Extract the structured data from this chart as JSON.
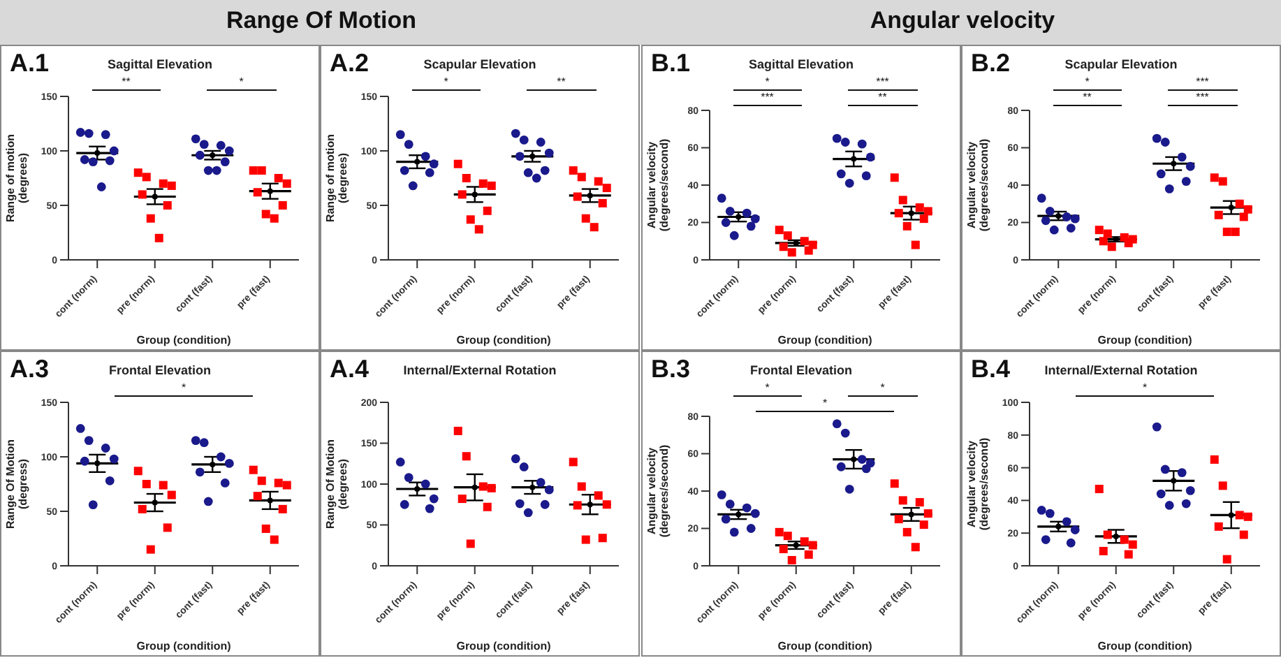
{
  "chart_data": [
    {
      "type": "scatter",
      "title": "Sagittal Elevation",
      "xlabel": "Group (condition)",
      "ylabel": "Range of motion (degrees)",
      "categories": [
        "cont (norm)",
        "pre (norm)",
        "cont (fast)",
        "pre (fast)"
      ],
      "ylim": [
        0,
        150
      ],
      "yticks": [
        0,
        50,
        100,
        150
      ],
      "series": [
        {
          "color": "#1a1a8c",
          "marker": "circle",
          "x": [
            "cont (norm)",
            "cont (norm)",
            "cont (norm)",
            "cont (norm)",
            "cont (norm)",
            "cont (norm)",
            "cont (norm)",
            "cont (norm)"
          ],
          "values": [
            117,
            116,
            115,
            100,
            92,
            91,
            90,
            67
          ]
        },
        {
          "color": "#ff0000",
          "marker": "square",
          "x": [
            "pre (norm)",
            "pre (norm)",
            "pre (norm)",
            "pre (norm)",
            "pre (norm)",
            "pre (norm)",
            "pre (norm)",
            "pre (norm)"
          ],
          "values": [
            80,
            76,
            70,
            68,
            60,
            50,
            38,
            20
          ]
        },
        {
          "color": "#1a1a8c",
          "marker": "circle",
          "x": [
            "cont (fast)",
            "cont (fast)",
            "cont (fast)",
            "cont (fast)",
            "cont (fast)",
            "cont (fast)",
            "cont (fast)",
            "cont (fast)"
          ],
          "values": [
            111,
            106,
            105,
            100,
            96,
            90,
            82,
            82
          ]
        },
        {
          "color": "#ff0000",
          "marker": "square",
          "x": [
            "pre (fast)",
            "pre (fast)",
            "pre (fast)",
            "pre (fast)",
            "pre (fast)",
            "pre (fast)",
            "pre (fast)",
            "pre (fast)"
          ],
          "values": [
            82,
            82,
            75,
            70,
            62,
            50,
            42,
            38
          ]
        },
        {
          "color": "#000000",
          "marker": "circle",
          "x": [
            "cont (norm)",
            "pre (norm)",
            "cont (fast)",
            "pre (fast)"
          ],
          "values": [
            98,
            58,
            96,
            63
          ],
          "errors": [
            6,
            7,
            4,
            7
          ]
        }
      ],
      "subtitle": "Range Of Motion",
      "annotations": [
        "A.1",
        "**",
        "*"
      ]
    },
    {
      "type": "scatter",
      "title": "Scapular Elevation",
      "xlabel": "Group (condition)",
      "ylabel": "Range of motion (degrees)",
      "categories": [
        "cont (norm)",
        "pre (norm)",
        "cont (fast)",
        "pre (fast)"
      ],
      "ylim": [
        0,
        150
      ],
      "yticks": [
        0,
        50,
        100,
        150
      ],
      "series": [
        {
          "color": "#1a1a8c",
          "marker": "circle",
          "x": [
            "cont (norm)",
            "cont (norm)",
            "cont (norm)",
            "cont (norm)",
            "cont (norm)",
            "cont (norm)",
            "cont (norm)"
          ],
          "values": [
            115,
            106,
            95,
            88,
            82,
            80,
            68
          ]
        },
        {
          "color": "#ff0000",
          "marker": "square",
          "x": [
            "pre (norm)",
            "pre (norm)",
            "pre (norm)",
            "pre (norm)",
            "pre (norm)",
            "pre (norm)",
            "pre (norm)",
            "pre (norm)"
          ],
          "values": [
            88,
            75,
            70,
            68,
            60,
            45,
            37,
            28
          ]
        },
        {
          "color": "#1a1a8c",
          "marker": "circle",
          "x": [
            "cont (fast)",
            "cont (fast)",
            "cont (fast)",
            "cont (fast)",
            "cont (fast)",
            "cont (fast)",
            "cont (fast)",
            "cont (fast)"
          ],
          "values": [
            116,
            110,
            108,
            98,
            95,
            82,
            80,
            75
          ]
        },
        {
          "color": "#ff0000",
          "marker": "square",
          "x": [
            "pre (fast)",
            "pre (fast)",
            "pre (fast)",
            "pre (fast)",
            "pre (fast)",
            "pre (fast)",
            "pre (fast)",
            "pre (fast)"
          ],
          "values": [
            82,
            76,
            72,
            66,
            58,
            52,
            38,
            30
          ]
        },
        {
          "color": "#000000",
          "marker": "circle",
          "x": [
            "cont (norm)",
            "pre (norm)",
            "cont (fast)",
            "pre (fast)"
          ],
          "values": [
            90,
            60,
            95,
            59
          ],
          "errors": [
            6,
            7,
            5,
            6
          ]
        }
      ],
      "annotations": [
        "A.2",
        "*",
        "**"
      ]
    },
    {
      "type": "scatter",
      "title": "Sagittal Elevation",
      "xlabel": "Group (condition)",
      "ylabel": "Angular velocity (degrees/second)",
      "categories": [
        "cont (norm)",
        "pre (norm)",
        "cont (fast)",
        "pre (fast)"
      ],
      "ylim": [
        0,
        80
      ],
      "yticks": [
        0,
        20,
        40,
        60,
        80
      ],
      "series": [
        {
          "color": "#1a1a8c",
          "marker": "circle",
          "x": [
            "cont (norm)",
            "cont (norm)",
            "cont (norm)",
            "cont (norm)",
            "cont (norm)",
            "cont (norm)",
            "cont (norm)"
          ],
          "values": [
            33,
            26,
            25,
            22,
            20,
            18,
            13
          ]
        },
        {
          "color": "#ff0000",
          "marker": "square",
          "x": [
            "pre (norm)",
            "pre (norm)",
            "pre (norm)",
            "pre (norm)",
            "pre (norm)",
            "pre (norm)",
            "pre (norm)"
          ],
          "values": [
            16,
            13,
            10,
            8,
            7,
            5,
            4
          ]
        },
        {
          "color": "#1a1a8c",
          "marker": "circle",
          "x": [
            "cont (fast)",
            "cont (fast)",
            "cont (fast)",
            "cont (fast)",
            "cont (fast)",
            "cont (fast)",
            "cont (fast)"
          ],
          "values": [
            65,
            63,
            62,
            55,
            46,
            45,
            41
          ]
        },
        {
          "color": "#ff0000",
          "marker": "square",
          "x": [
            "pre (fast)",
            "pre (fast)",
            "pre (fast)",
            "pre (fast)",
            "pre (fast)",
            "pre (fast)",
            "pre (fast)",
            "pre (fast)"
          ],
          "values": [
            44,
            32,
            28,
            26,
            25,
            22,
            18,
            8
          ]
        },
        {
          "color": "#000000",
          "marker": "circle",
          "x": [
            "cont (norm)",
            "pre (norm)",
            "cont (fast)",
            "pre (fast)"
          ],
          "values": [
            23,
            9,
            54,
            25
          ],
          "errors": [
            2.5,
            1.5,
            4,
            3.5
          ]
        }
      ],
      "subtitle": "Angular velocity",
      "annotations": [
        "B.1",
        "*",
        "***",
        "***",
        "**"
      ]
    },
    {
      "type": "scatter",
      "title": "Scapular Elevation",
      "xlabel": "Group (condition)",
      "ylabel": "Angular velocity (degrees/second)",
      "categories": [
        "cont (norm)",
        "pre (norm)",
        "cont (fast)",
        "pre (fast)"
      ],
      "ylim": [
        0,
        80
      ],
      "yticks": [
        0,
        20,
        40,
        60,
        80
      ],
      "series": [
        {
          "color": "#1a1a8c",
          "marker": "circle",
          "x": [
            "cont (norm)",
            "cont (norm)",
            "cont (norm)",
            "cont (norm)",
            "cont (norm)",
            "cont (norm)",
            "cont (norm)"
          ],
          "values": [
            33,
            26,
            23,
            22,
            21,
            17,
            16
          ]
        },
        {
          "color": "#ff0000",
          "marker": "square",
          "x": [
            "pre (norm)",
            "pre (norm)",
            "pre (norm)",
            "pre (norm)",
            "pre (norm)",
            "pre (norm)",
            "pre (norm)"
          ],
          "values": [
            16,
            14,
            12,
            11,
            10,
            9,
            7
          ]
        },
        {
          "color": "#1a1a8c",
          "marker": "circle",
          "x": [
            "cont (fast)",
            "cont (fast)",
            "cont (fast)",
            "cont (fast)",
            "cont (fast)",
            "cont (fast)",
            "cont (fast)"
          ],
          "values": [
            65,
            63,
            55,
            50,
            46,
            42,
            38
          ]
        },
        {
          "color": "#ff0000",
          "marker": "square",
          "x": [
            "pre (fast)",
            "pre (fast)",
            "pre (fast)",
            "pre (fast)",
            "pre (fast)",
            "pre (fast)",
            "pre (fast)",
            "pre (fast)"
          ],
          "values": [
            44,
            42,
            30,
            27,
            24,
            23,
            15,
            15
          ]
        },
        {
          "color": "#000000",
          "marker": "circle",
          "x": [
            "cont (norm)",
            "pre (norm)",
            "cont (fast)",
            "pre (fast)"
          ],
          "values": [
            23.5,
            11,
            51.5,
            28
          ],
          "errors": [
            2.3,
            1.2,
            3.5,
            3.5
          ]
        }
      ],
      "annotations": [
        "B.2",
        "*",
        "***",
        "**",
        "***"
      ]
    },
    {
      "type": "scatter",
      "title": "Frontal Elevation",
      "xlabel": "Group (condition)",
      "ylabel": "Range Of Motion (degress)",
      "categories": [
        "cont (norm)",
        "pre (norm)",
        "cont (fast)",
        "pre (fast)"
      ],
      "ylim": [
        0,
        150
      ],
      "yticks": [
        0,
        50,
        100,
        150
      ],
      "series": [
        {
          "color": "#1a1a8c",
          "marker": "circle",
          "x": [
            "cont (norm)",
            "cont (norm)",
            "cont (norm)",
            "cont (norm)",
            "cont (norm)",
            "cont (norm)",
            "cont (norm)"
          ],
          "values": [
            126,
            115,
            108,
            98,
            96,
            78,
            56
          ]
        },
        {
          "color": "#ff0000",
          "marker": "square",
          "x": [
            "pre (norm)",
            "pre (norm)",
            "pre (norm)",
            "pre (norm)",
            "pre (norm)",
            "pre (norm)",
            "pre (norm)"
          ],
          "values": [
            87,
            75,
            74,
            65,
            52,
            35,
            15
          ]
        },
        {
          "color": "#1a1a8c",
          "marker": "circle",
          "x": [
            "cont (fast)",
            "cont (fast)",
            "cont (fast)",
            "cont (fast)",
            "cont (fast)",
            "cont (fast)",
            "cont (fast)"
          ],
          "values": [
            115,
            113,
            100,
            94,
            86,
            76,
            59
          ]
        },
        {
          "color": "#ff0000",
          "marker": "square",
          "x": [
            "pre (fast)",
            "pre (fast)",
            "pre (fast)",
            "pre (fast)",
            "pre (fast)",
            "pre (fast)",
            "pre (fast)",
            "pre (fast)"
          ],
          "values": [
            88,
            78,
            76,
            74,
            64,
            52,
            34,
            24
          ]
        },
        {
          "color": "#000000",
          "marker": "circle",
          "x": [
            "cont (norm)",
            "pre (norm)",
            "cont (fast)",
            "pre (fast)"
          ],
          "values": [
            94,
            58,
            93,
            60
          ],
          "errors": [
            8,
            8,
            7,
            8
          ]
        }
      ],
      "annotations": [
        "A.3",
        "*"
      ]
    },
    {
      "type": "scatter",
      "title": "Internal/External Rotation",
      "xlabel": "Group (condition)",
      "ylabel": "Range Of Motion (degrees)",
      "categories": [
        "cont (norm)",
        "pre (norm)",
        "cont (fast)",
        "pre (fast)"
      ],
      "ylim": [
        0,
        200
      ],
      "yticks": [
        0,
        50,
        100,
        150,
        200
      ],
      "series": [
        {
          "color": "#1a1a8c",
          "marker": "circle",
          "x": [
            "cont (norm)",
            "cont (norm)",
            "cont (norm)",
            "cont (norm)",
            "cont (norm)",
            "cont (norm)"
          ],
          "values": [
            127,
            108,
            100,
            82,
            75,
            70
          ]
        },
        {
          "color": "#ff0000",
          "marker": "square",
          "x": [
            "pre (norm)",
            "pre (norm)",
            "pre (norm)",
            "pre (norm)",
            "pre (norm)",
            "pre (norm)",
            "pre (norm)"
          ],
          "values": [
            165,
            134,
            97,
            95,
            82,
            72,
            27
          ]
        },
        {
          "color": "#1a1a8c",
          "marker": "circle",
          "x": [
            "cont (fast)",
            "cont (fast)",
            "cont (fast)",
            "cont (fast)",
            "cont (fast)",
            "cont (fast)",
            "cont (fast)"
          ],
          "values": [
            131,
            121,
            102,
            93,
            76,
            75,
            65
          ]
        },
        {
          "color": "#ff0000",
          "marker": "square",
          "x": [
            "pre (fast)",
            "pre (fast)",
            "pre (fast)",
            "pre (fast)",
            "pre (fast)",
            "pre (fast)",
            "pre (fast)"
          ],
          "values": [
            127,
            97,
            86,
            75,
            74,
            34,
            32
          ]
        },
        {
          "color": "#000000",
          "marker": "circle",
          "x": [
            "cont (norm)",
            "pre (norm)",
            "cont (fast)",
            "pre (fast)"
          ],
          "values": [
            94,
            96,
            96,
            75
          ],
          "errors": [
            8,
            16,
            8,
            12
          ]
        }
      ],
      "annotations": [
        "A.4"
      ]
    },
    {
      "type": "scatter",
      "title": "Frontal Elevation",
      "xlabel": "Group (condition)",
      "ylabel": "Angular velocity (degrees/second)",
      "categories": [
        "cont (norm)",
        "pre (norm)",
        "cont (fast)",
        "pre (fast)"
      ],
      "ylim": [
        0,
        80
      ],
      "yticks": [
        0,
        20,
        40,
        60,
        80
      ],
      "series": [
        {
          "color": "#1a1a8c",
          "marker": "circle",
          "x": [
            "cont (norm)",
            "cont (norm)",
            "cont (norm)",
            "cont (norm)",
            "cont (norm)",
            "cont (norm)",
            "cont (norm)"
          ],
          "values": [
            38,
            33,
            31,
            28,
            25,
            20,
            18
          ]
        },
        {
          "color": "#ff0000",
          "marker": "square",
          "x": [
            "pre (norm)",
            "pre (norm)",
            "pre (norm)",
            "pre (norm)",
            "pre (norm)",
            "pre (norm)",
            "pre (norm)"
          ],
          "values": [
            18,
            16,
            13,
            11,
            9,
            6,
            3
          ]
        },
        {
          "color": "#1a1a8c",
          "marker": "circle",
          "x": [
            "cont (fast)",
            "cont (fast)",
            "cont (fast)",
            "cont (fast)",
            "cont (fast)",
            "cont (fast)",
            "cont (fast)"
          ],
          "values": [
            76,
            71,
            57,
            55,
            53,
            52,
            41
          ]
        },
        {
          "color": "#ff0000",
          "marker": "square",
          "x": [
            "pre (fast)",
            "pre (fast)",
            "pre (fast)",
            "pre (fast)",
            "pre (fast)",
            "pre (fast)",
            "pre (fast)",
            "pre (fast)"
          ],
          "values": [
            44,
            35,
            34,
            28,
            25,
            22,
            18,
            10
          ]
        },
        {
          "color": "#000000",
          "marker": "circle",
          "x": [
            "cont (norm)",
            "pre (norm)",
            "cont (fast)",
            "pre (fast)"
          ],
          "values": [
            27.5,
            11,
            57,
            27.5
          ],
          "errors": [
            2.5,
            2,
            5,
            3.5
          ]
        }
      ],
      "annotations": [
        "B.3",
        "*",
        "*",
        "*"
      ]
    },
    {
      "type": "scatter",
      "title": "Internal/External Rotation",
      "xlabel": "Group (condition)",
      "ylabel": "Angular velocity (degrees/second)",
      "categories": [
        "cont (norm)",
        "pre (norm)",
        "cont (fast)",
        "pre (fast)"
      ],
      "ylim": [
        0,
        100
      ],
      "yticks": [
        0,
        20,
        40,
        60,
        80,
        100
      ],
      "series": [
        {
          "color": "#1a1a8c",
          "marker": "circle",
          "x": [
            "cont (norm)",
            "cont (norm)",
            "cont (norm)",
            "cont (norm)",
            "cont (norm)",
            "cont (norm)"
          ],
          "values": [
            34,
            32,
            27,
            22,
            16,
            14
          ]
        },
        {
          "color": "#ff0000",
          "marker": "square",
          "x": [
            "pre (norm)",
            "pre (norm)",
            "pre (norm)",
            "pre (norm)",
            "pre (norm)",
            "pre (norm)"
          ],
          "values": [
            47,
            19,
            16,
            13,
            9,
            7
          ]
        },
        {
          "color": "#1a1a8c",
          "marker": "circle",
          "x": [
            "cont (fast)",
            "cont (fast)",
            "cont (fast)",
            "cont (fast)",
            "cont (fast)",
            "cont (fast)",
            "cont (fast)"
          ],
          "values": [
            85,
            59,
            57,
            46,
            44,
            38,
            37
          ]
        },
        {
          "color": "#ff0000",
          "marker": "square",
          "x": [
            "pre (fast)",
            "pre (fast)",
            "pre (fast)",
            "pre (fast)",
            "pre (fast)",
            "pre (fast)",
            "pre (fast)"
          ],
          "values": [
            65,
            49,
            31,
            30,
            24,
            19,
            4
          ]
        },
        {
          "color": "#000000",
          "marker": "circle",
          "x": [
            "cont (norm)",
            "pre (norm)",
            "cont (fast)",
            "pre (fast)"
          ],
          "values": [
            24,
            18,
            52,
            31
          ],
          "errors": [
            3,
            4,
            6,
            8
          ]
        }
      ],
      "annotations": [
        "B.4",
        "*"
      ]
    }
  ]
}
